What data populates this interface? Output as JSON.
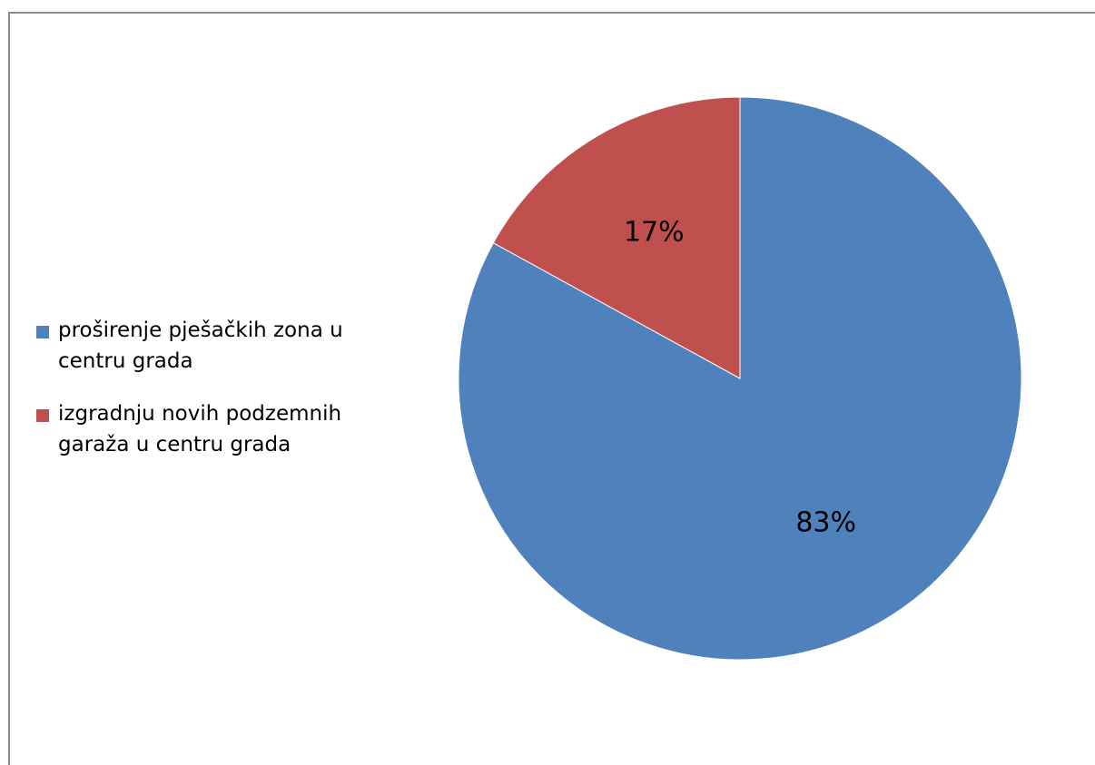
{
  "chart_data": {
    "type": "pie",
    "categories": [
      "proširenje pješačkih zona u centru grada",
      "izgradnju novih podzemnih garaža u centru grada"
    ],
    "values": [
      83,
      17
    ],
    "data_labels": [
      "83%",
      "17%"
    ],
    "colors": [
      "#4f81bd",
      "#c0504d"
    ],
    "legend": "left",
    "title": ""
  },
  "legend": {
    "items": [
      {
        "label": "proširenje pješačkih zona u centru grada",
        "color": "#4f81bd"
      },
      {
        "label": "izgradnju novih podzemnih garaža u centru grada",
        "color": "#c0504d"
      }
    ]
  }
}
